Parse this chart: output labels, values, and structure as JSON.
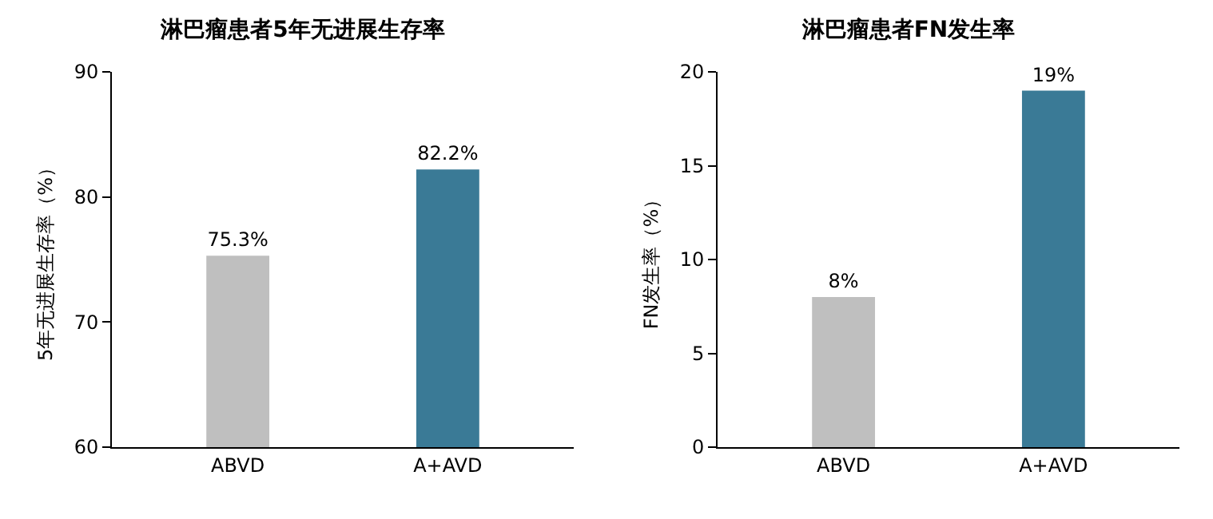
{
  "chart_data": [
    {
      "type": "bar",
      "title": "淋巴瘤患者5年无进展生存率",
      "ylabel": "5年无进展生存率（%）",
      "categories": [
        "ABVD",
        "A+AVD"
      ],
      "values": [
        75.3,
        82.2
      ],
      "colors": [
        "#bfbfbf",
        "#3a7a96"
      ],
      "value_labels": [
        "75.3%",
        "82.2%"
      ],
      "ylim": [
        60,
        90
      ],
      "yticks": [
        60,
        70,
        80,
        90
      ],
      "grid": false
    },
    {
      "type": "bar",
      "title": "淋巴瘤患者FN发生率",
      "ylabel": "FN发生率（%）",
      "categories": [
        "ABVD",
        "A+AVD"
      ],
      "values": [
        8,
        19
      ],
      "colors": [
        "#bfbfbf",
        "#3a7a96"
      ],
      "value_labels": [
        "8%",
        "19%"
      ],
      "ylim": [
        0,
        20
      ],
      "yticks": [
        0,
        5,
        10,
        15,
        20
      ],
      "grid": false
    }
  ]
}
